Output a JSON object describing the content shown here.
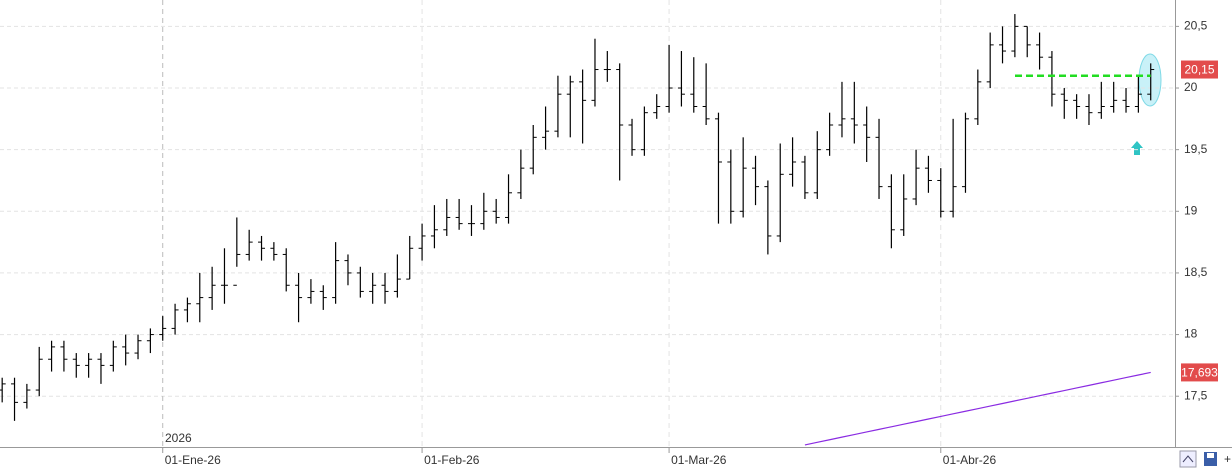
{
  "chart_data": {
    "type": "ohlc",
    "year_label": "2026",
    "categories": [
      null,
      null,
      null,
      null,
      null,
      null,
      null,
      null,
      null,
      null,
      null,
      null,
      null,
      "01-Ene-26",
      null,
      null,
      null,
      null,
      null,
      null,
      null,
      null,
      null,
      null,
      null,
      null,
      null,
      null,
      null,
      null,
      null,
      null,
      null,
      null,
      "01-Feb-26",
      null,
      null,
      null,
      null,
      null,
      null,
      null,
      null,
      null,
      null,
      null,
      null,
      null,
      null,
      null,
      null,
      null,
      null,
      null,
      "01-Mar-26",
      null,
      null,
      null,
      null,
      null,
      null,
      null,
      null,
      null,
      null,
      null,
      null,
      null,
      null,
      null,
      null,
      null,
      null,
      null,
      null,
      null,
      "01-Abr-26",
      null,
      null,
      null,
      null,
      null,
      null,
      null,
      null,
      null,
      null,
      null,
      null,
      null,
      null,
      null,
      null,
      null
    ],
    "ohlc": {
      "color": "#000000",
      "open": [
        17.55,
        17.6,
        17.45,
        17.55,
        17.8,
        17.9,
        17.8,
        17.75,
        17.8,
        17.75,
        17.9,
        17.85,
        17.95,
        18.0,
        18.05,
        18.2,
        18.25,
        18.3,
        18.4,
        18.4,
        18.65,
        18.75,
        18.7,
        18.65,
        18.4,
        18.3,
        18.35,
        18.3,
        18.6,
        18.5,
        18.35,
        18.4,
        18.35,
        18.45,
        18.7,
        18.8,
        18.85,
        18.95,
        18.9,
        18.9,
        19.0,
        18.95,
        19.15,
        19.35,
        19.6,
        19.65,
        19.95,
        20.05,
        19.9,
        20.15,
        20.15,
        19.7,
        19.5,
        19.8,
        19.85,
        20.0,
        19.95,
        19.85,
        19.75,
        19.4,
        19.0,
        19.35,
        19.2,
        18.8,
        19.3,
        19.4,
        19.15,
        19.5,
        19.7,
        19.75,
        19.7,
        19.6,
        19.2,
        18.85,
        19.1,
        19.35,
        19.25,
        19.0,
        19.2,
        19.75,
        20.05,
        20.35,
        20.3,
        20.5,
        20.35,
        20.25,
        19.95,
        19.9,
        19.85,
        19.8,
        19.85,
        19.9,
        19.85,
        19.95
      ],
      "high": [
        17.65,
        17.65,
        17.6,
        17.9,
        17.95,
        17.95,
        17.85,
        17.85,
        17.85,
        17.95,
        18.0,
        18.0,
        18.05,
        18.15,
        18.25,
        18.3,
        18.5,
        18.55,
        18.7,
        18.95,
        18.85,
        18.8,
        18.75,
        18.7,
        18.5,
        18.45,
        18.4,
        18.75,
        18.65,
        18.55,
        18.5,
        18.5,
        18.65,
        18.8,
        18.9,
        19.05,
        19.1,
        19.1,
        19.05,
        19.15,
        19.1,
        19.3,
        19.5,
        19.7,
        19.85,
        20.1,
        20.1,
        20.15,
        20.4,
        20.3,
        20.2,
        19.75,
        19.85,
        19.95,
        20.35,
        20.3,
        20.25,
        20.2,
        19.8,
        19.5,
        19.6,
        19.45,
        19.25,
        19.55,
        19.6,
        19.45,
        19.65,
        19.8,
        20.05,
        20.05,
        19.85,
        19.75,
        19.3,
        19.3,
        19.5,
        19.45,
        19.35,
        19.75,
        19.8,
        20.15,
        20.45,
        20.5,
        20.6,
        20.5,
        20.45,
        20.3,
        20.0,
        19.95,
        19.95,
        20.05,
        20.05,
        20.0,
        20.1,
        20.2
      ],
      "low": [
        17.45,
        17.3,
        17.4,
        17.5,
        17.7,
        17.7,
        17.65,
        17.65,
        17.6,
        17.7,
        17.75,
        17.8,
        17.85,
        17.95,
        18.0,
        18.1,
        18.1,
        18.2,
        18.25,
        18.55,
        18.6,
        18.6,
        18.6,
        18.35,
        18.1,
        18.25,
        18.2,
        18.25,
        18.4,
        18.3,
        18.25,
        18.25,
        18.3,
        18.45,
        18.6,
        18.7,
        18.8,
        18.85,
        18.8,
        18.85,
        18.9,
        18.9,
        19.1,
        19.3,
        19.5,
        19.6,
        19.6,
        19.55,
        19.85,
        20.05,
        19.25,
        19.45,
        19.45,
        19.75,
        19.8,
        19.85,
        19.8,
        19.7,
        18.9,
        18.9,
        18.95,
        19.05,
        18.65,
        18.75,
        19.2,
        19.1,
        19.1,
        19.45,
        19.6,
        19.55,
        19.4,
        19.1,
        18.7,
        18.8,
        19.05,
        19.15,
        18.95,
        18.95,
        19.15,
        19.7,
        20.0,
        20.2,
        20.25,
        20.25,
        20.15,
        19.85,
        19.75,
        19.75,
        19.7,
        19.75,
        19.8,
        19.8,
        19.8,
        19.9
      ],
      "close": [
        17.6,
        17.45,
        17.55,
        17.8,
        17.9,
        17.8,
        17.75,
        17.8,
        17.75,
        17.9,
        17.85,
        17.95,
        18.0,
        18.05,
        18.2,
        18.25,
        18.3,
        18.4,
        18.4,
        18.65,
        18.75,
        18.7,
        18.65,
        18.4,
        18.3,
        18.35,
        18.3,
        18.6,
        18.5,
        18.35,
        18.4,
        18.35,
        18.45,
        18.7,
        18.8,
        18.85,
        18.95,
        18.9,
        18.9,
        19.0,
        18.95,
        19.15,
        19.35,
        19.6,
        19.65,
        19.95,
        20.05,
        19.9,
        20.15,
        20.15,
        19.7,
        19.5,
        19.8,
        19.85,
        20.0,
        19.95,
        19.85,
        19.75,
        19.4,
        19.0,
        19.35,
        19.2,
        18.8,
        19.3,
        19.4,
        19.15,
        19.5,
        19.7,
        19.75,
        19.7,
        19.6,
        19.2,
        18.85,
        19.1,
        19.35,
        19.25,
        19.0,
        19.2,
        19.75,
        20.05,
        20.35,
        20.3,
        20.5,
        20.35,
        20.25,
        19.95,
        19.9,
        19.85,
        19.8,
        19.85,
        19.9,
        19.85,
        19.95,
        20.15
      ],
      "close_label": "20,15",
      "label_color": "#e24b4b"
    },
    "moving_average": {
      "color": "#8a2be2",
      "values": [
        null,
        null,
        null,
        null,
        null,
        null,
        null,
        null,
        null,
        null,
        null,
        null,
        null,
        null,
        null,
        null,
        null,
        null,
        null,
        null,
        null,
        null,
        null,
        null,
        null,
        null,
        null,
        null,
        null,
        null,
        null,
        null,
        null,
        null,
        null,
        null,
        null,
        null,
        null,
        null,
        null,
        null,
        null,
        null,
        null,
        null,
        null,
        null,
        null,
        null,
        null,
        null,
        null,
        null,
        null,
        null,
        null,
        null,
        null,
        null,
        null,
        null,
        null,
        null,
        null,
        17.105,
        17.126,
        17.147,
        17.168,
        17.189,
        17.21,
        17.231,
        17.252,
        17.273,
        17.294,
        17.315,
        17.336,
        17.357,
        17.378,
        17.399,
        17.42,
        17.441,
        17.462,
        17.483,
        17.504,
        17.525,
        17.546,
        17.567,
        17.588,
        17.609,
        17.63,
        17.651,
        17.672,
        17.693
      ],
      "value_label": "17,693",
      "label_color": "#e24b4b"
    },
    "reference_line": {
      "value": 20.1,
      "color": "#22dd22"
    },
    "ylim": [
      17.088,
      20.714
    ],
    "yticks": [
      {
        "value": 17.5,
        "label": "17,5"
      },
      18,
      {
        "value": 18.5,
        "label": "18,5"
      },
      19,
      {
        "value": 19.5,
        "label": "19,5"
      },
      20,
      {
        "value": 20.5,
        "label": "20,5"
      }
    ],
    "grid": true
  }
}
